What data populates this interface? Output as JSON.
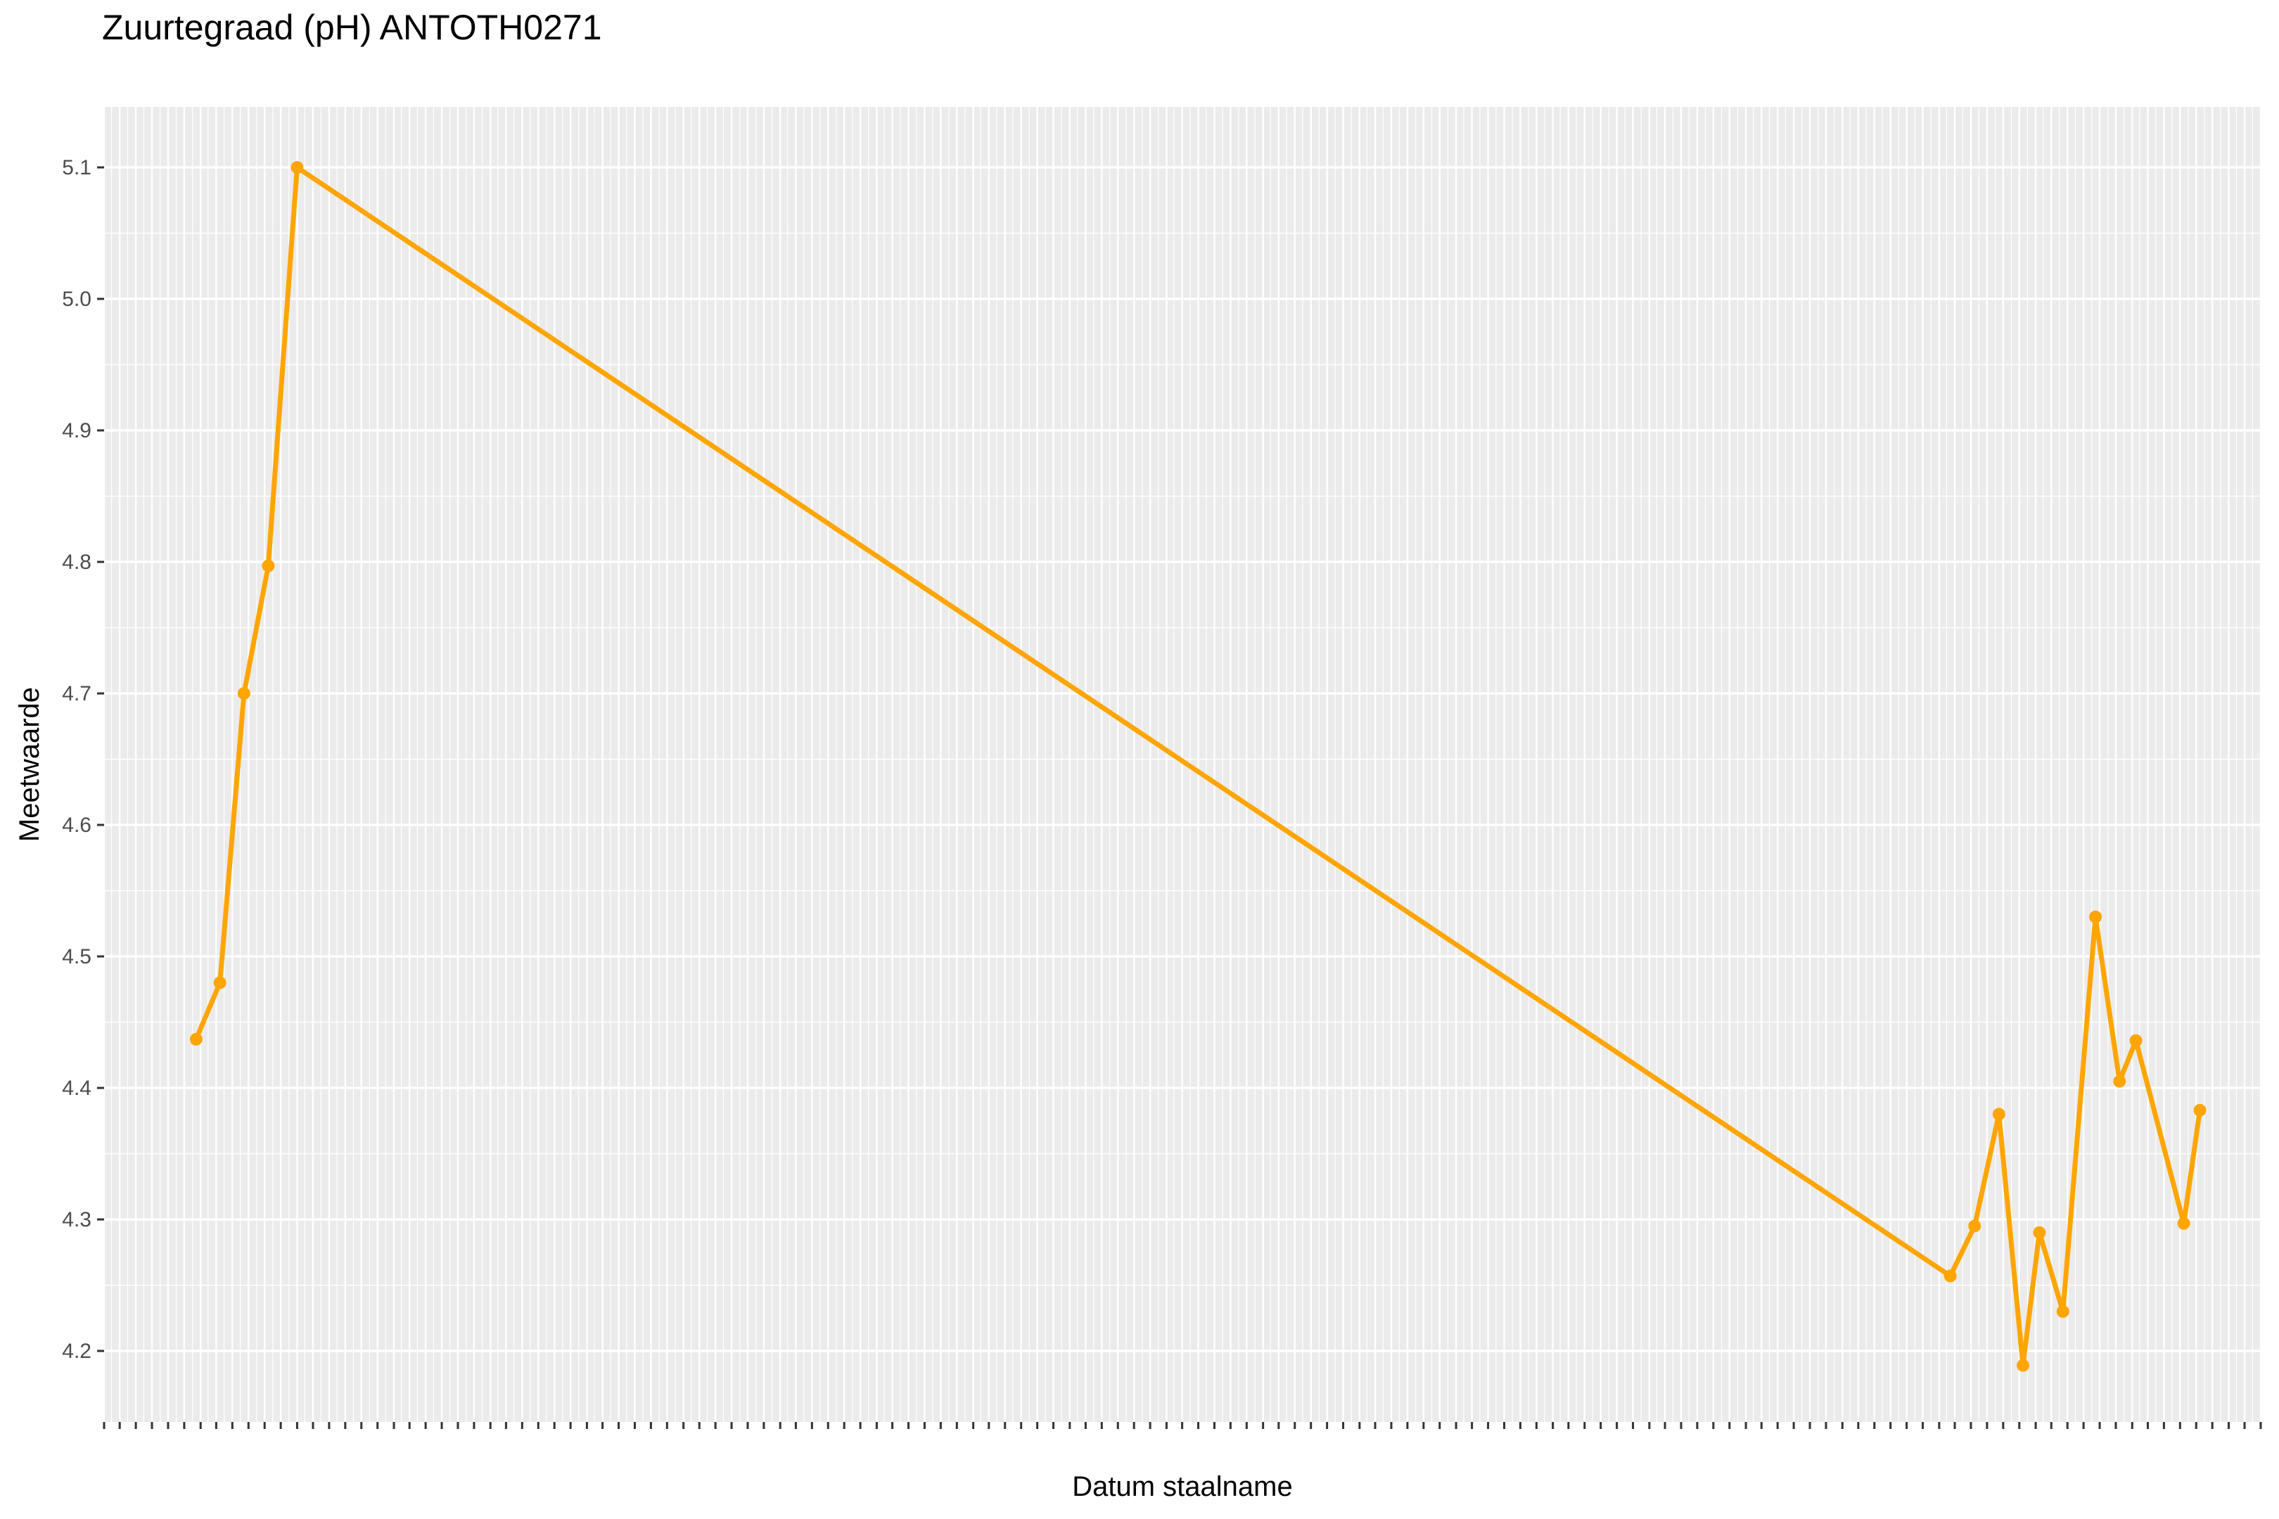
{
  "chart_data": {
    "type": "line",
    "title": "Zuurtegraad (pH) ANTOTH0271",
    "xlabel": "Datum staalname",
    "ylabel": "Meetwaarde",
    "ylim": [
      4.146,
      5.146
    ],
    "yticks": [
      4.2,
      4.3,
      4.4,
      4.5,
      4.6,
      4.7,
      4.8,
      4.9,
      5.0,
      5.1
    ],
    "xlim": [
      "2002-02-01",
      "2024-06-01"
    ],
    "x_tick_step": "month",
    "x_tick_labels_legible": false,
    "grid": true,
    "color": "#FFA500",
    "series": [
      {
        "x": [
          "2003-01-15",
          "2003-04-15",
          "2003-07-15",
          "2003-10-15",
          "2004-02-01",
          "2021-03-15",
          "2021-06-15",
          "2021-09-15",
          "2021-12-15",
          "2022-02-15",
          "2022-05-15",
          "2022-09-15",
          "2022-12-15",
          "2023-02-15",
          "2023-08-15",
          "2023-10-15"
        ],
        "y": [
          4.437,
          4.48,
          4.7,
          4.797,
          5.1,
          4.257,
          4.295,
          4.38,
          4.189,
          4.29,
          4.23,
          4.53,
          4.405,
          4.436,
          4.297,
          4.383
        ]
      }
    ]
  }
}
